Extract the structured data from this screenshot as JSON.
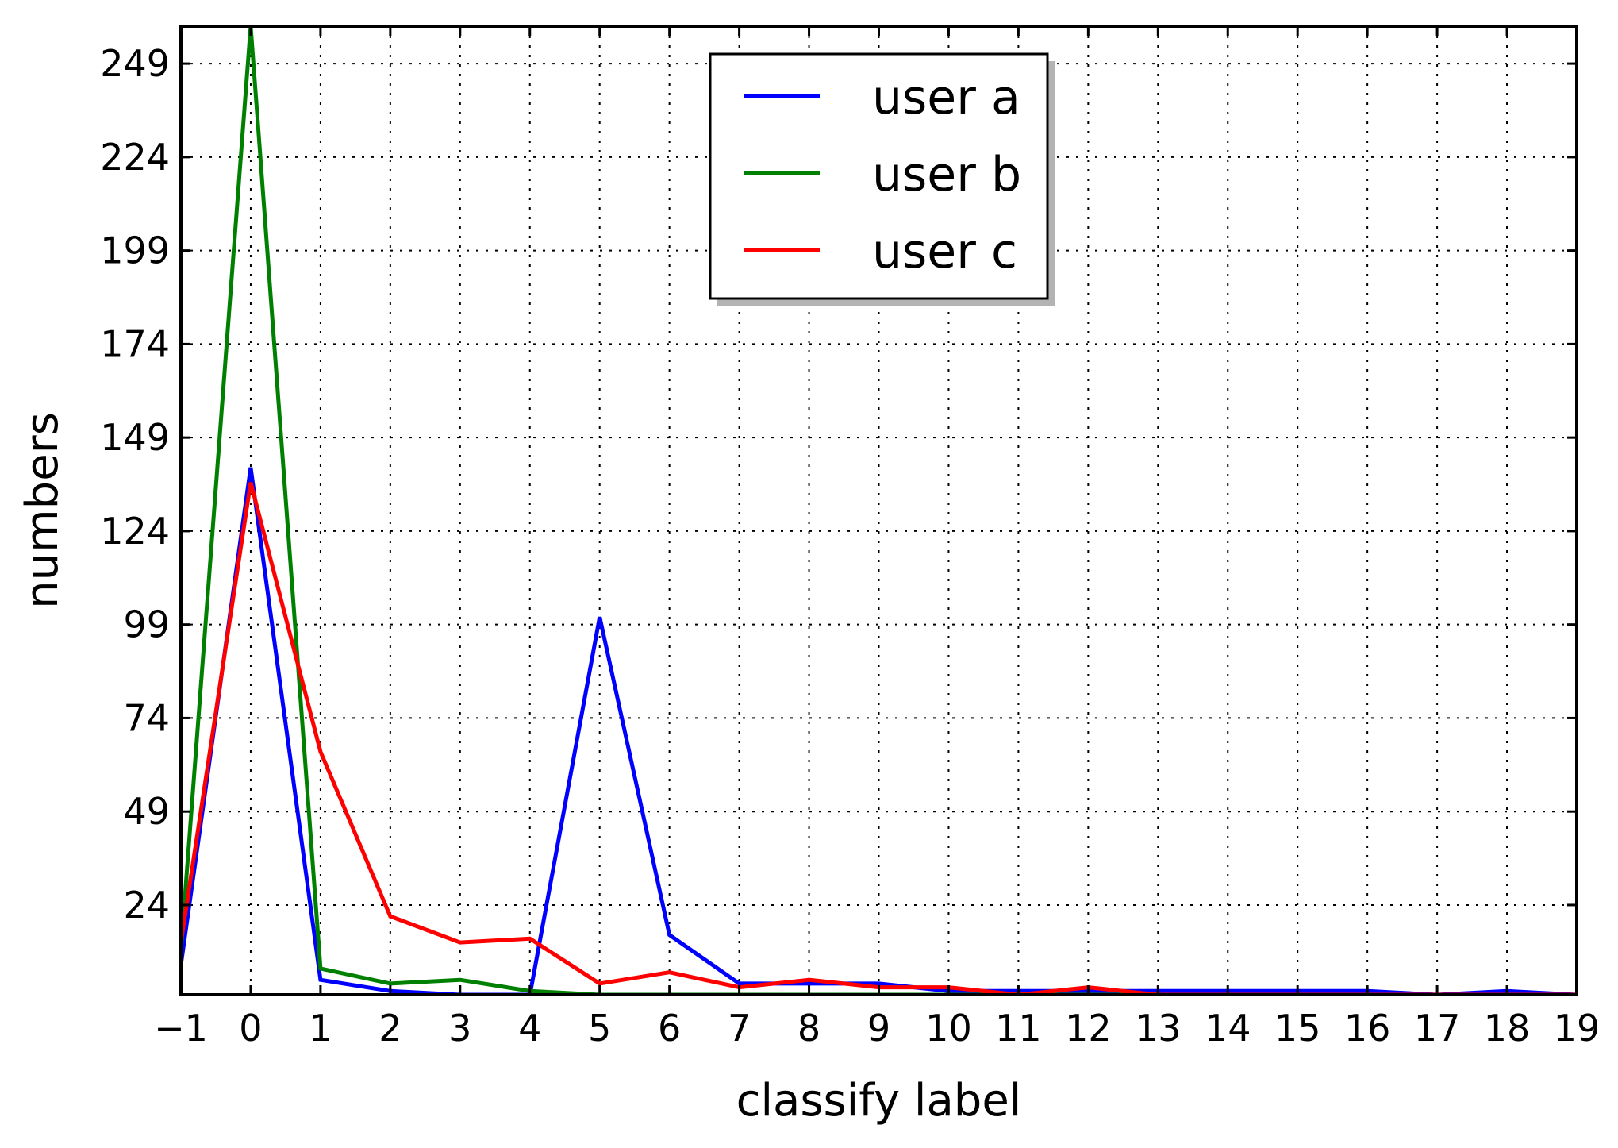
{
  "chart_data": {
    "type": "line",
    "xlabel": "classify label",
    "ylabel": "numbers",
    "xlim": [
      -1,
      19
    ],
    "ylim": [
      0,
      259
    ],
    "x_ticks": [
      "−1",
      "0",
      "1",
      "2",
      "3",
      "4",
      "5",
      "6",
      "7",
      "8",
      "9",
      "10",
      "11",
      "12",
      "13",
      "14",
      "15",
      "16",
      "17",
      "18",
      "19"
    ],
    "x_tick_values": [
      -1,
      0,
      1,
      2,
      3,
      4,
      5,
      6,
      7,
      8,
      9,
      10,
      11,
      12,
      13,
      14,
      15,
      16,
      17,
      18,
      19
    ],
    "y_ticks": [
      "24",
      "49",
      "74",
      "99",
      "124",
      "149",
      "174",
      "199",
      "224",
      "249"
    ],
    "y_tick_values": [
      24,
      49,
      74,
      99,
      124,
      149,
      174,
      199,
      224,
      249
    ],
    "grid": true,
    "legend_position": "top-center",
    "x": [
      -1,
      0,
      1,
      2,
      3,
      4,
      5,
      6,
      7,
      8,
      9,
      10,
      11,
      12,
      13,
      14,
      15,
      16,
      17,
      18,
      19
    ],
    "series": [
      {
        "name": "user a",
        "color": "#0000ff",
        "values": [
          8,
          141,
          4,
          1,
          0,
          0,
          101,
          16,
          3,
          3,
          3,
          1,
          1,
          1,
          1,
          1,
          1,
          1,
          0,
          1,
          0
        ]
      },
      {
        "name": "user b",
        "color": "#008000",
        "values": [
          12,
          259,
          7,
          3,
          4,
          1,
          0,
          0,
          0,
          0,
          0,
          0,
          0,
          0,
          0,
          0,
          0,
          0,
          0,
          0,
          0
        ]
      },
      {
        "name": "user c",
        "color": "#ff0000",
        "values": [
          14,
          137,
          65,
          21,
          14,
          15,
          3,
          6,
          2,
          4,
          2,
          2,
          0,
          2,
          0,
          0,
          0,
          0,
          0,
          0,
          0
        ]
      }
    ]
  }
}
